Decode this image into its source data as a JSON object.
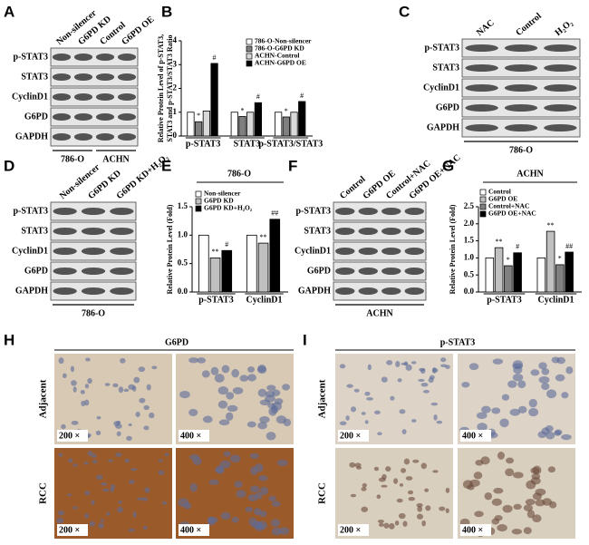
{
  "blots": [
    {
      "panel": "A",
      "columns": [
        "Non-silencer",
        "G6PD KD",
        "Control",
        "G6PD OE"
      ],
      "rows": [
        "p-STAT3",
        "STAT3",
        "CyclinD1",
        "G6PD",
        "GAPDH"
      ],
      "cell_lines": [
        "786-O",
        "ACHN"
      ]
    },
    {
      "panel": "C",
      "columns": [
        "NAC",
        "Control",
        "H₂O₂"
      ],
      "rows": [
        "p-STAT3",
        "STAT3",
        "CyclinD1",
        "G6PD",
        "GAPDH"
      ],
      "cell_lines": [
        "786-O"
      ]
    },
    {
      "panel": "D",
      "columns": [
        "Non-silencer",
        "G6PD KD",
        "G6PD KD+H₂O₂"
      ],
      "rows": [
        "p-STAT3",
        "STAT3",
        "CyclinD1",
        "G6PD",
        "GAPDH"
      ],
      "cell_lines": [
        "786-O"
      ]
    },
    {
      "panel": "F",
      "columns": [
        "Control",
        "G6PD OE",
        "Control+NAC",
        "G6PD OE+NAC"
      ],
      "rows": [
        "p-STAT3",
        "STAT3",
        "CyclinD1",
        "G6PD",
        "GAPDH"
      ],
      "cell_lines": [
        "ACHN"
      ]
    }
  ],
  "chart_data": [
    {
      "type": "bar",
      "panel": "B",
      "ylabel": [
        "Relative Protein Level of p-STAT3,",
        "STAT3 and p-STAT3/STAT3 Ratio"
      ],
      "categories": [
        "p-STAT3",
        "STAT3",
        "p-STAT3/STAT3"
      ],
      "ylim": [
        0,
        4
      ],
      "yticks": [
        0,
        1,
        2,
        3,
        4
      ],
      "series": [
        {
          "name": "786-O-Non-silencer",
          "color": "#ffffff",
          "values": [
            1.0,
            1.0,
            1.0
          ],
          "annotations": [
            null,
            null,
            null
          ]
        },
        {
          "name": "786-O-G6PD KD",
          "color": "#808080",
          "values": [
            0.6,
            0.82,
            0.8
          ],
          "annotations": [
            "*",
            "*",
            "*"
          ]
        },
        {
          "name": "ACHN-Control",
          "color": "#d9d9d9",
          "values": [
            1.05,
            1.0,
            1.0
          ],
          "annotations": [
            null,
            null,
            null
          ]
        },
        {
          "name": "ACHN-G6PD OE",
          "color": "#000000",
          "values": [
            3.05,
            1.4,
            1.45
          ],
          "annotations": [
            "#",
            "#",
            "#"
          ]
        }
      ]
    },
    {
      "type": "bar",
      "panel": "E",
      "title": "786-O",
      "ylabel": [
        "Relative Protein Level (Fold)"
      ],
      "categories": [
        "p-STAT3",
        "CyclinD1"
      ],
      "ylim": [
        0,
        1.5
      ],
      "yticks": [
        {
          "value": 0,
          "label": "0.0"
        },
        {
          "value": 0.5,
          "label": "0.5"
        },
        {
          "value": 1,
          "label": "1.0"
        },
        {
          "value": 1.5,
          "label": "1.5"
        }
      ],
      "series": [
        {
          "name": "Non-silencer",
          "color": "#ffffff",
          "values": [
            1.0,
            1.0
          ],
          "annotations": [
            null,
            null
          ]
        },
        {
          "name": "G6PD KD",
          "color": "#c0c0c0",
          "values": [
            0.6,
            0.86
          ],
          "annotations": [
            "**",
            "**"
          ]
        },
        {
          "name": "G6PD KD+H₂O₂",
          "color": "#000000",
          "values": [
            0.73,
            1.28
          ],
          "annotations": [
            "#",
            "##"
          ]
        }
      ]
    },
    {
      "type": "bar",
      "panel": "G",
      "title": "ACHN",
      "ylabel": [
        "Relative Protein Level (Fold)"
      ],
      "categories": [
        "p-STAT3",
        "CyclinD1"
      ],
      "ylim": [
        0,
        2.5
      ],
      "yticks": [
        {
          "value": 0,
          "label": "0.0"
        },
        {
          "value": 0.5,
          "label": "0.5"
        },
        {
          "value": 1,
          "label": "1.0"
        },
        {
          "value": 1.5,
          "label": "1.5"
        },
        {
          "value": 2,
          "label": "2.0"
        },
        {
          "value": 2.5,
          "label": "2.5"
        }
      ],
      "series": [
        {
          "name": "Control",
          "color": "#ffffff",
          "values": [
            1.0,
            1.0
          ],
          "annotations": [
            null,
            null
          ]
        },
        {
          "name": "G6PD OE",
          "color": "#c0c0c0",
          "values": [
            1.3,
            1.78
          ],
          "annotations": [
            "**",
            "**"
          ]
        },
        {
          "name": "Control+NAC",
          "color": "#808080",
          "values": [
            0.77,
            0.8
          ],
          "annotations": [
            "*",
            "*"
          ]
        },
        {
          "name": "G6PD OE+NAC",
          "color": "#000000",
          "values": [
            1.15,
            1.17
          ],
          "annotations": [
            "#",
            "##"
          ]
        }
      ]
    }
  ],
  "histology": [
    {
      "panel": "H",
      "title": "G6PD",
      "rows": [
        "Adjacent",
        "RCC"
      ],
      "magnifications": [
        "200 ×",
        "400 ×"
      ]
    },
    {
      "panel": "I",
      "title": "p-STAT3",
      "rows": [
        "Adjacent",
        "RCC"
      ],
      "magnifications": [
        "200 ×",
        "400 ×"
      ]
    }
  ]
}
